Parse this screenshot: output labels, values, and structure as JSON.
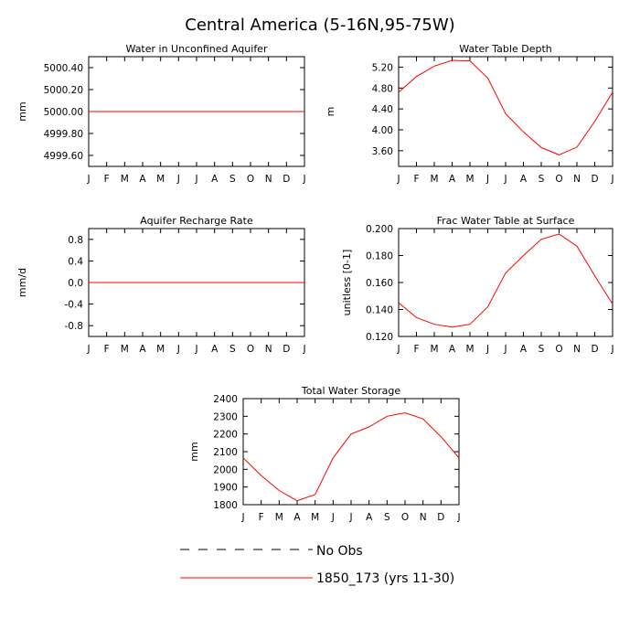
{
  "title": "Central America (5-16N,95-75W)",
  "colors": {
    "model": "#ff0000",
    "obs": "#000000",
    "frame": "#000000"
  },
  "legend": {
    "entries": [
      {
        "label": "No Obs",
        "style": "dashed",
        "color": "#000000"
      },
      {
        "label": "1850_173 (yrs 11-30)",
        "style": "solid",
        "color": "#ff0000"
      }
    ]
  },
  "chart_data": [
    {
      "type": "line",
      "title": "Water in Unconfined Aquifer",
      "ylabel": "mm",
      "categories": [
        "J",
        "F",
        "M",
        "A",
        "M",
        "J",
        "J",
        "A",
        "S",
        "O",
        "N",
        "D",
        "J"
      ],
      "ylim": [
        4999.5,
        5000.5
      ],
      "yticks": [
        "5000.40",
        "5000.20",
        "5000.00",
        "4999.80",
        "4999.60"
      ],
      "ytick_values": [
        5000.4,
        5000.2,
        5000.0,
        4999.8,
        4999.6
      ],
      "series": [
        {
          "values": [
            5000,
            5000,
            5000,
            5000,
            5000,
            5000,
            5000,
            5000,
            5000,
            5000,
            5000,
            5000,
            5000
          ]
        }
      ]
    },
    {
      "type": "line",
      "title": "Water Table Depth",
      "ylabel": "m",
      "categories": [
        "J",
        "F",
        "M",
        "A",
        "M",
        "J",
        "J",
        "A",
        "S",
        "O",
        "N",
        "D",
        "J"
      ],
      "ylim": [
        3.3,
        5.4
      ],
      "yticks": [
        "5.20",
        "4.80",
        "4.40",
        "4.00",
        "3.60"
      ],
      "ytick_values": [
        5.2,
        4.8,
        4.4,
        4.0,
        3.6
      ],
      "series": [
        {
          "values": [
            4.72,
            5.02,
            5.22,
            5.33,
            5.32,
            4.99,
            4.31,
            3.96,
            3.66,
            3.52,
            3.67,
            4.16,
            4.72
          ]
        }
      ]
    },
    {
      "type": "line",
      "title": "Aquifer Recharge Rate",
      "ylabel": "mm/d",
      "categories": [
        "J",
        "F",
        "M",
        "A",
        "M",
        "J",
        "J",
        "A",
        "S",
        "O",
        "N",
        "D",
        "J"
      ],
      "ylim": [
        -1.0,
        1.0
      ],
      "yticks": [
        "0.8",
        "0.4",
        "0.0",
        "-0.4",
        "-0.8"
      ],
      "ytick_values": [
        0.8,
        0.4,
        0.0,
        -0.4,
        -0.8
      ],
      "series": [
        {
          "values": [
            0,
            0,
            0,
            0,
            0,
            0,
            0,
            0,
            0,
            0,
            0,
            0,
            0
          ]
        }
      ]
    },
    {
      "type": "line",
      "title": "Frac Water Table at Surface",
      "ylabel": "unitless [0-1]",
      "categories": [
        "J",
        "F",
        "M",
        "A",
        "M",
        "J",
        "J",
        "A",
        "S",
        "O",
        "N",
        "D",
        "J"
      ],
      "ylim": [
        0.12,
        0.2
      ],
      "yticks": [
        "0.200",
        "0.180",
        "0.160",
        "0.140",
        "0.120"
      ],
      "ytick_values": [
        0.2,
        0.18,
        0.16,
        0.14,
        0.12
      ],
      "series": [
        {
          "values": [
            0.145,
            0.134,
            0.129,
            0.127,
            0.129,
            0.142,
            0.167,
            0.18,
            0.192,
            0.196,
            0.187,
            0.165,
            0.144
          ]
        }
      ]
    },
    {
      "type": "line",
      "title": "Total Water Storage",
      "ylabel": "mm",
      "categories": [
        "J",
        "F",
        "M",
        "A",
        "M",
        "J",
        "J",
        "A",
        "S",
        "O",
        "N",
        "D",
        "J"
      ],
      "ylim": [
        1800,
        2400
      ],
      "yticks": [
        "2400",
        "2300",
        "2200",
        "2100",
        "2000",
        "1900",
        "1800"
      ],
      "ytick_values": [
        2400,
        2300,
        2200,
        2100,
        2000,
        1900,
        1800
      ],
      "series": [
        {
          "values": [
            2065,
            1965,
            1880,
            1822,
            1858,
            2065,
            2200,
            2240,
            2300,
            2320,
            2285,
            2185,
            2065
          ]
        }
      ]
    }
  ]
}
